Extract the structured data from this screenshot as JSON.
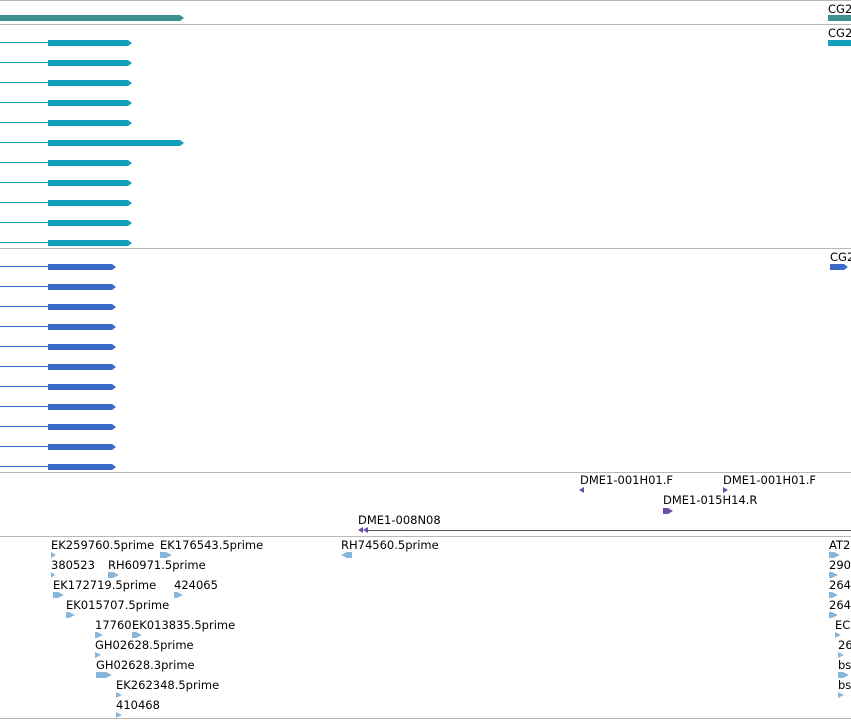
{
  "colors": {
    "track1": "#3f8f8f",
    "track2": "#129fbd",
    "track3": "#3a6bc8",
    "clone": "#6a4fa8",
    "est": "#88b6d8",
    "separator": "#b8b8b8"
  },
  "genes": {
    "track1_label": "CG2",
    "track2_label": "CG2",
    "track3_label": "CG2"
  },
  "clones": {
    "c1": "DME1-001H01.F",
    "c2": "DME1-001H01.F",
    "c3": "DME1-015H14.R",
    "c4": "DME1-008N08"
  },
  "ests": {
    "e01": "EK259760.5prime",
    "e02": "EK176543.5prime",
    "e03": "RH74560.5prime",
    "e04": "380523",
    "e05": "RH60971.5prime",
    "e06": "EK172719.5prime",
    "e07": "424065",
    "e08": "EK015707.5prime",
    "e09": "17760",
    "e10": "EK013835.5prime",
    "e11": "GH02628.5prime",
    "e12": "GH02628.3prime",
    "e13": "EK262348.5prime",
    "e14": "410468",
    "r1": "AT2",
    "r2": "290",
    "r3": "264",
    "r4": "264",
    "r5": "EC",
    "r6": "26",
    "r7": "bs",
    "r8": "bs"
  }
}
